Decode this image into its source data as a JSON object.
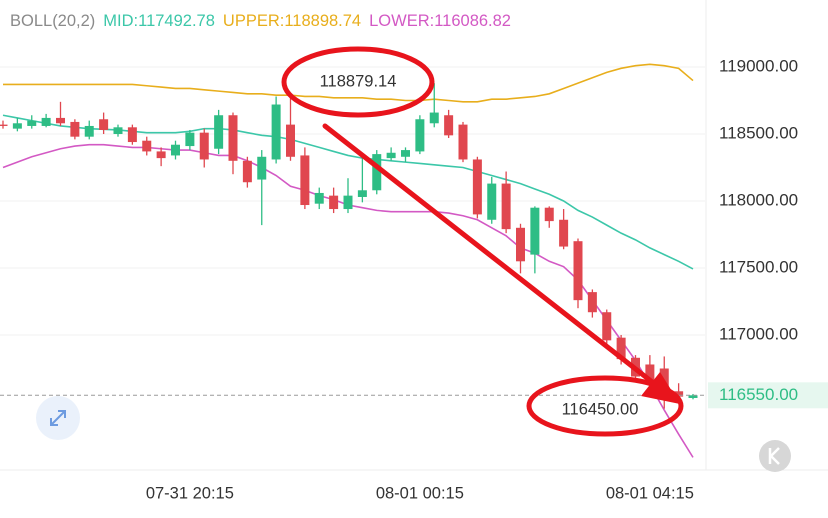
{
  "chart_data": {
    "type": "candlestick",
    "header": [
      "BOLL(20,2)",
      "MID:117492.78",
      "UPPER:118898.74",
      "LOWER:116086.82"
    ],
    "categories": [
      null,
      null,
      null,
      null,
      null,
      null,
      null,
      null,
      null,
      null,
      null,
      null,
      null,
      "07-31 20:15",
      null,
      null,
      null,
      null,
      null,
      null,
      null,
      null,
      null,
      null,
      null,
      null,
      null,
      null,
      null,
      "08-01 00:15",
      null,
      null,
      null,
      null,
      null,
      null,
      null,
      null,
      null,
      null,
      null,
      null,
      null,
      null,
      null,
      "08-01 04:15",
      null,
      null,
      null
    ],
    "open": [
      118570,
      118540,
      118560,
      118560,
      118620,
      118590,
      118480,
      118610,
      118500,
      118550,
      118450,
      118370,
      118340,
      118410,
      118510,
      118390,
      118640,
      118300,
      118160,
      118310,
      118570,
      118340,
      117980,
      118040,
      117940,
      118030,
      118080,
      118320,
      118330,
      118370,
      118580,
      118640,
      118570,
      118310,
      117860,
      118130,
      117800,
      117600,
      117950,
      117860,
      117700,
      117320,
      117170,
      116980,
      116830,
      116780,
      116750,
      116580,
      116530
    ],
    "high": [
      118600,
      118620,
      118640,
      118650,
      118740,
      118610,
      118600,
      118660,
      118570,
      118570,
      118480,
      118400,
      118450,
      118530,
      118540,
      118680,
      118660,
      118330,
      118380,
      118780,
      118800,
      118400,
      118100,
      118100,
      118170,
      118320,
      118380,
      118400,
      118400,
      118640,
      118879.14,
      118680,
      118590,
      118330,
      118180,
      118220,
      117830,
      117960,
      117960,
      117940,
      117720,
      117340,
      117190,
      117000,
      116850,
      116850,
      116840,
      116640,
      116560
    ],
    "low": [
      118540,
      118520,
      118540,
      118550,
      118560,
      118460,
      118460,
      118500,
      118480,
      118420,
      118340,
      118260,
      118310,
      118380,
      118250,
      118350,
      118200,
      118100,
      117820,
      118280,
      118300,
      117940,
      117940,
      117910,
      117910,
      117990,
      118050,
      118300,
      118290,
      118350,
      118550,
      118470,
      118290,
      117870,
      117830,
      117760,
      117460,
      117460,
      117800,
      117640,
      117200,
      117130,
      116930,
      116780,
      116650,
      116600,
      116450,
      116520,
      116520
    ],
    "close": [
      118560,
      118580,
      118600,
      118620,
      118580,
      118480,
      118560,
      118530,
      118550,
      118440,
      118370,
      118320,
      118420,
      118510,
      118310,
      118640,
      118300,
      118140,
      118330,
      118720,
      118330,
      117970,
      118060,
      117940,
      118040,
      118080,
      118350,
      118360,
      118380,
      118610,
      118660,
      118490,
      118310,
      117900,
      118130,
      117790,
      117550,
      117950,
      117850,
      117660,
      117260,
      117170,
      116960,
      116820,
      116690,
      116630,
      116570,
      116540,
      116550
    ],
    "up_color": "#2ebd85",
    "down_color": "#e0474f",
    "overlays": [
      {
        "color": "#3cc7a9",
        "values": [
          118640,
          118620,
          118600,
          118580,
          118560,
          118550,
          118540,
          118535,
          118530,
          118520,
          118510,
          118510,
          118510,
          118520,
          118540,
          118540,
          118530,
          118510,
          118490,
          118480,
          118460,
          118430,
          118400,
          118370,
          118340,
          118320,
          118310,
          118300,
          118290,
          118280,
          118270,
          118260,
          118250,
          118220,
          118190,
          118160,
          118130,
          118090,
          118050,
          118000,
          117930,
          117880,
          117820,
          117760,
          117710,
          117650,
          117600,
          117550,
          117492.78
        ]
      },
      {
        "color": "#e8ae1c",
        "values": [
          118870,
          118870,
          118870,
          118870,
          118870,
          118870,
          118870,
          118870,
          118870,
          118870,
          118860,
          118850,
          118840,
          118840,
          118830,
          118820,
          118810,
          118800,
          118800,
          118790,
          118790,
          118780,
          118780,
          118770,
          118770,
          118770,
          118760,
          118760,
          118750,
          118750,
          118760,
          118750,
          118740,
          118740,
          118760,
          118760,
          118770,
          118780,
          118800,
          118840,
          118880,
          118920,
          118960,
          118990,
          119010,
          119020,
          119010,
          118990,
          118898.74
        ]
      },
      {
        "color": "#d359c4",
        "values": [
          118250,
          118290,
          118330,
          118360,
          118390,
          118410,
          118420,
          118420,
          118410,
          118400,
          118400,
          118390,
          118380,
          118380,
          118360,
          118340,
          118340,
          118300,
          118250,
          118190,
          118110,
          118080,
          118040,
          118010,
          117970,
          117950,
          117930,
          117920,
          117920,
          117920,
          117920,
          117910,
          117890,
          117860,
          117800,
          117740,
          117650,
          117610,
          117550,
          117510,
          117410,
          117260,
          117110,
          116960,
          116810,
          116630,
          116440,
          116260,
          116086.82
        ]
      }
    ],
    "ylim": [
      116000,
      119500
    ],
    "yticks": [
      {
        "value": 117000,
        "label": "117000.00"
      },
      {
        "value": 117500,
        "label": "117500.00"
      },
      {
        "value": 118000,
        "label": "118000.00"
      },
      {
        "value": 118500,
        "label": "118500.00"
      },
      {
        "value": 119000,
        "label": "119000.00"
      }
    ],
    "grid": true,
    "current_price": {
      "value": 116550,
      "label": "116550.00"
    },
    "annotations": [
      "118879.14",
      "116450.00"
    ]
  }
}
